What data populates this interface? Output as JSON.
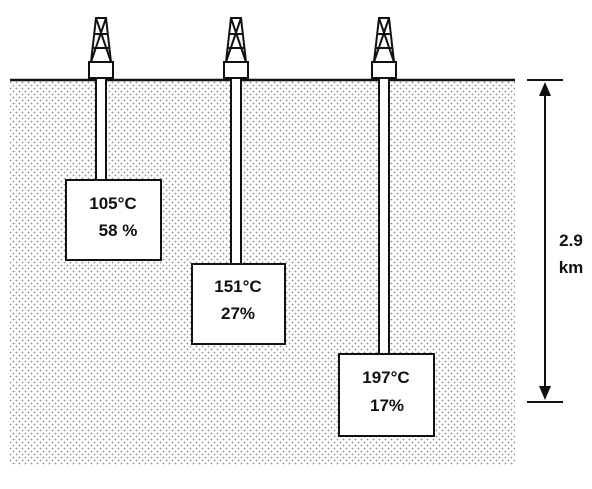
{
  "colors": {
    "ink": "#111111",
    "ground_dots": "#8a8a8a",
    "background": "#ffffff"
  },
  "wells": [
    {
      "temperature": "105°C",
      "percent": "58 %"
    },
    {
      "temperature": "151°C",
      "percent": "27%"
    },
    {
      "temperature": "197°C",
      "percent": "17%"
    }
  ],
  "depth": {
    "value": "2.9",
    "unit": "km"
  }
}
